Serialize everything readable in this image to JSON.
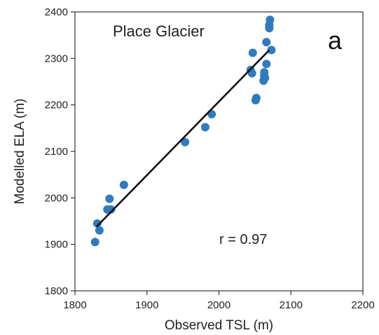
{
  "chart_data": {
    "type": "scatter",
    "title": "Place Glacier",
    "panel_label": "a",
    "xlabel": "Observed TSL (m)",
    "ylabel": "Modelled ELA (m)",
    "xlim": [
      1800,
      2200
    ],
    "ylim": [
      1800,
      2400
    ],
    "xticks": [
      "1800",
      "1900",
      "2000",
      "2100",
      "2200"
    ],
    "yticks": [
      "1800",
      "1900",
      "2000",
      "2100",
      "2200",
      "2300",
      "2400"
    ],
    "annotation": "r = 0.97",
    "marker_color": "#2f7bbf",
    "line_color": "#111111",
    "grid": false,
    "points": [
      {
        "x": 1828,
        "y": 1905
      },
      {
        "x": 1831,
        "y": 1945
      },
      {
        "x": 1834,
        "y": 1930
      },
      {
        "x": 1845,
        "y": 1975
      },
      {
        "x": 1850,
        "y": 1975
      },
      {
        "x": 1848,
        "y": 1998
      },
      {
        "x": 1868,
        "y": 2028
      },
      {
        "x": 1953,
        "y": 2120
      },
      {
        "x": 1981,
        "y": 2152
      },
      {
        "x": 1990,
        "y": 2180
      },
      {
        "x": 2044,
        "y": 2275
      },
      {
        "x": 2046,
        "y": 2268
      },
      {
        "x": 2047,
        "y": 2312
      },
      {
        "x": 2051,
        "y": 2210
      },
      {
        "x": 2052,
        "y": 2215
      },
      {
        "x": 2062,
        "y": 2252
      },
      {
        "x": 2063,
        "y": 2262
      },
      {
        "x": 2063,
        "y": 2270
      },
      {
        "x": 2064,
        "y": 2258
      },
      {
        "x": 2066,
        "y": 2288
      },
      {
        "x": 2066,
        "y": 2335
      },
      {
        "x": 2070,
        "y": 2365
      },
      {
        "x": 2070,
        "y": 2372
      },
      {
        "x": 2071,
        "y": 2383
      },
      {
        "x": 2073,
        "y": 2318
      }
    ],
    "fit_line": {
      "x": [
        1830,
        2070
      ],
      "y": [
        1938,
        2318
      ]
    }
  }
}
